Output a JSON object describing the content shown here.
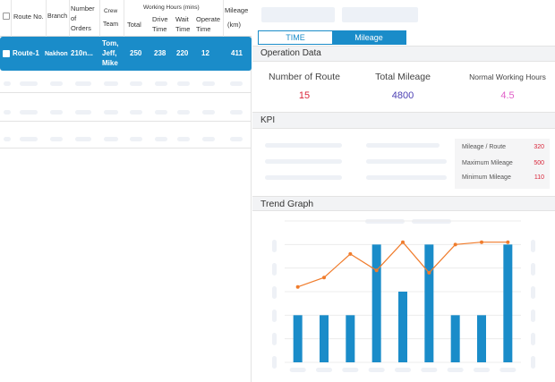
{
  "table": {
    "headers": {
      "route_no": "Route No.",
      "branch": "Branch",
      "orders_1": "Number",
      "orders_2": "of",
      "orders_3": "Orders",
      "crew_1": "Crew",
      "crew_2": "Team",
      "working_hours": "Working Hours (mins)",
      "total": "Total",
      "drive_1": "Drive",
      "drive_2": "Time",
      "wait_1": "Wait",
      "wait_2": "Time",
      "operate_1": "Operate",
      "operate_2": "Time",
      "mileage_1": "Mileage",
      "mileage_2": "(km)"
    },
    "selected_row": {
      "route": "Route-1",
      "branch": "Nakhon",
      "orders": "210n...",
      "crew_1": "Tom,",
      "crew_2": "Jeff,",
      "crew_3": "Mike",
      "total": "250",
      "drive": "238",
      "wait": "220",
      "operate": "12",
      "mileage": "411"
    }
  },
  "tabs": [
    {
      "label": "TIME",
      "active": false
    },
    {
      "label": "Mileage",
      "active": true
    }
  ],
  "operation": {
    "title": "Operation Data",
    "metrics": [
      {
        "label": "Number of Route",
        "value": "15",
        "color": "#d9263a"
      },
      {
        "label": "Total Mileage",
        "value": "4800",
        "color": "#4b3fb3"
      },
      {
        "label": "Normal Working Hours",
        "value": "4.5",
        "color": "#e060c8"
      }
    ]
  },
  "kpi": {
    "title": "KPI",
    "items": [
      {
        "label": "Mileage / Route",
        "value": "320"
      },
      {
        "label": "Maximum Mileage",
        "value": "500"
      },
      {
        "label": "Minimum Mileage",
        "value": "110"
      }
    ]
  },
  "trend": {
    "title": "Trend Graph"
  },
  "chart_data": {
    "type": "bar",
    "categories": [
      "",
      "",
      "",
      "",
      "",
      "",
      "",
      "",
      ""
    ],
    "series": [
      {
        "type": "bar",
        "values": [
          2,
          2,
          2,
          5,
          3,
          5,
          2,
          2,
          5
        ],
        "color": "#1a8cc9"
      },
      {
        "type": "line",
        "values": [
          3.2,
          3.6,
          4.6,
          3.9,
          5.1,
          3.8,
          5.0,
          5.1,
          5.1
        ],
        "color": "#f07c2c"
      }
    ],
    "ylim": [
      0,
      6
    ],
    "grid": true
  }
}
